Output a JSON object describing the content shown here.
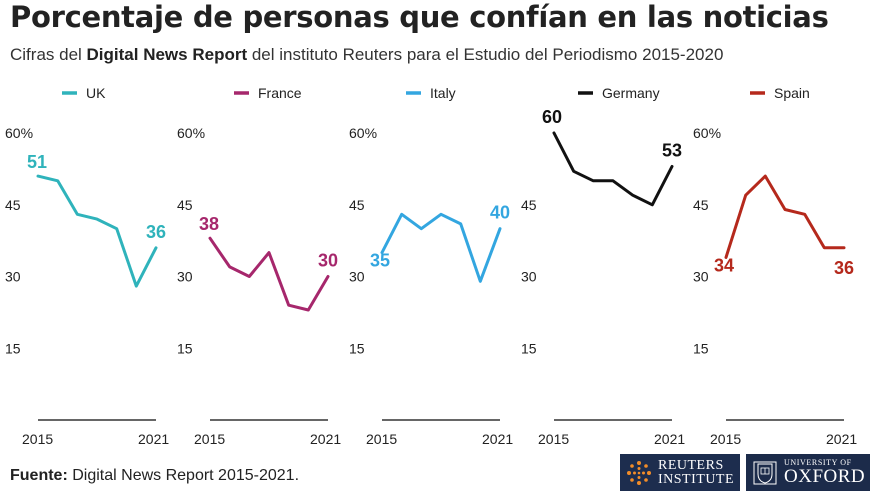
{
  "title": "Porcentaje de personas que confían en las noticias",
  "subtitle": {
    "before": "Cifras del ",
    "bold": "Digital News Report",
    "after": " del instituto Reuters para el Estudio del Periodismo 2015-2020"
  },
  "footer": {
    "source_label": "Fuente:",
    "source_text": " Digital News Report 2015-2021."
  },
  "logos": {
    "reuters_line1": "REUTERS",
    "reuters_line2": "INSTITUTE",
    "oxford_line1": "UNIVERSITY OF",
    "oxford_line2": "OXFORD"
  },
  "chart_data": {
    "type": "line",
    "ylim": [
      0,
      60
    ],
    "yticks": [
      "60%",
      "45",
      "30",
      "15"
    ],
    "ytick_values": [
      60,
      45,
      30,
      15
    ],
    "grid": false,
    "x": [
      2015,
      2016,
      2017,
      2018,
      2019,
      2020,
      2021
    ],
    "x_tick_labels": [
      "2015",
      "2021"
    ],
    "series": [
      {
        "name": "UK",
        "color": "#2fb3bb",
        "values": [
          51,
          50,
          43,
          42,
          40,
          28,
          36
        ],
        "first_label": "51",
        "last_label": "36"
      },
      {
        "name": "France",
        "color": "#a6276c",
        "values": [
          38,
          32,
          30,
          35,
          24,
          23,
          30
        ],
        "first_label": "38",
        "last_label": "30"
      },
      {
        "name": "Italy",
        "color": "#33a6e0",
        "values": [
          35,
          43,
          40,
          43,
          41,
          29,
          40
        ],
        "first_label": "35",
        "last_label": "40"
      },
      {
        "name": "Germany",
        "color": "#111111",
        "values": [
          60,
          52,
          50,
          50,
          47,
          45,
          53
        ],
        "first_label": "60",
        "last_label": "53"
      },
      {
        "name": "Spain",
        "color": "#b5291c",
        "values": [
          34,
          47,
          51,
          44,
          43,
          36,
          36
        ],
        "first_label": "34",
        "last_label": "36"
      }
    ]
  }
}
